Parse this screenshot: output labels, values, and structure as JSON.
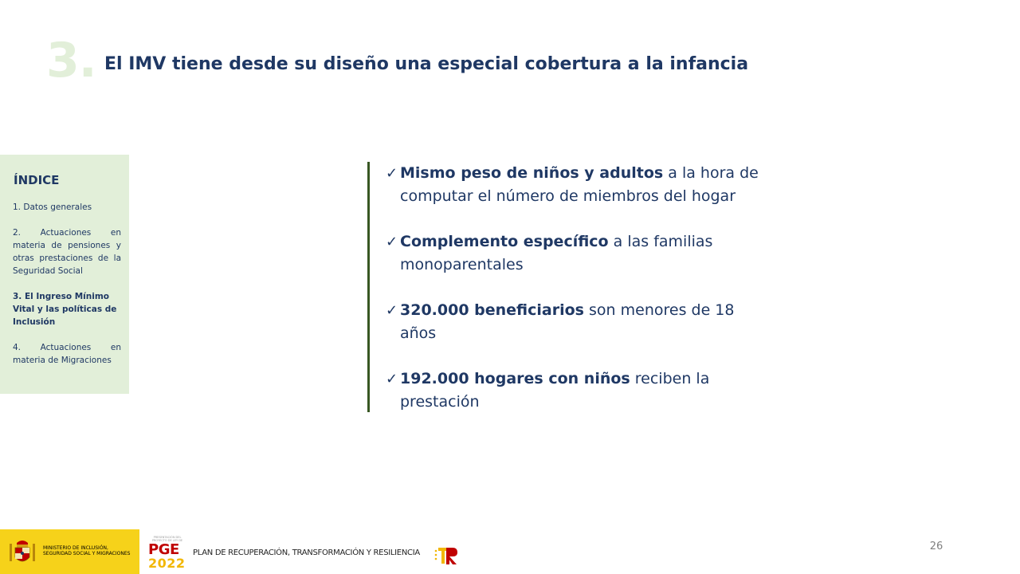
{
  "header": {
    "section_number": "3.",
    "title": "El IMV tiene desde su diseño una especial cobertura a la infancia"
  },
  "index": {
    "title": "ÍNDICE",
    "items": [
      {
        "label": "1. Datos generales",
        "current": false
      },
      {
        "label": "2. Actuaciones en materia de pensiones y otras prestaciones de la Seguridad Social",
        "current": false
      },
      {
        "label": "3. El Ingreso Mínimo Vital y las políticas de Inclusión",
        "current": true
      },
      {
        "label": "4. Actuaciones en materia de Migraciones",
        "current": false
      }
    ]
  },
  "bullets": [
    {
      "bold": "Mismo peso de niños y adultos",
      "rest": " a la hora de computar el número de miembros del hogar"
    },
    {
      "bold": "Complemento específico",
      "rest": " a las familias monoparentales"
    },
    {
      "bold": "320.000 beneficiarios",
      "rest": " son menores de 18 años"
    },
    {
      "bold": "192.000 hogares con niños",
      "rest": " reciben la prestación"
    }
  ],
  "footer": {
    "ministry": "Ministerio de Inclusión, Seguridad Social y Migraciones",
    "pge_top": "Presentación del Proyecto de Ley de",
    "pge_main": "PGE",
    "pge_year": "2022",
    "plan": "PLAN DE RECUPERACIÓN, TRANSFORMACIÓN Y RESILIENCIA",
    "page_number": "26"
  },
  "colors": {
    "title": "#1f3864",
    "accent_green": "#385723",
    "panel_bg": "#e2efd9",
    "footer_yellow": "#f6d21a"
  },
  "icons": [
    "check-icon",
    "coat-of-arms-icon",
    "tr-logo-icon"
  ]
}
